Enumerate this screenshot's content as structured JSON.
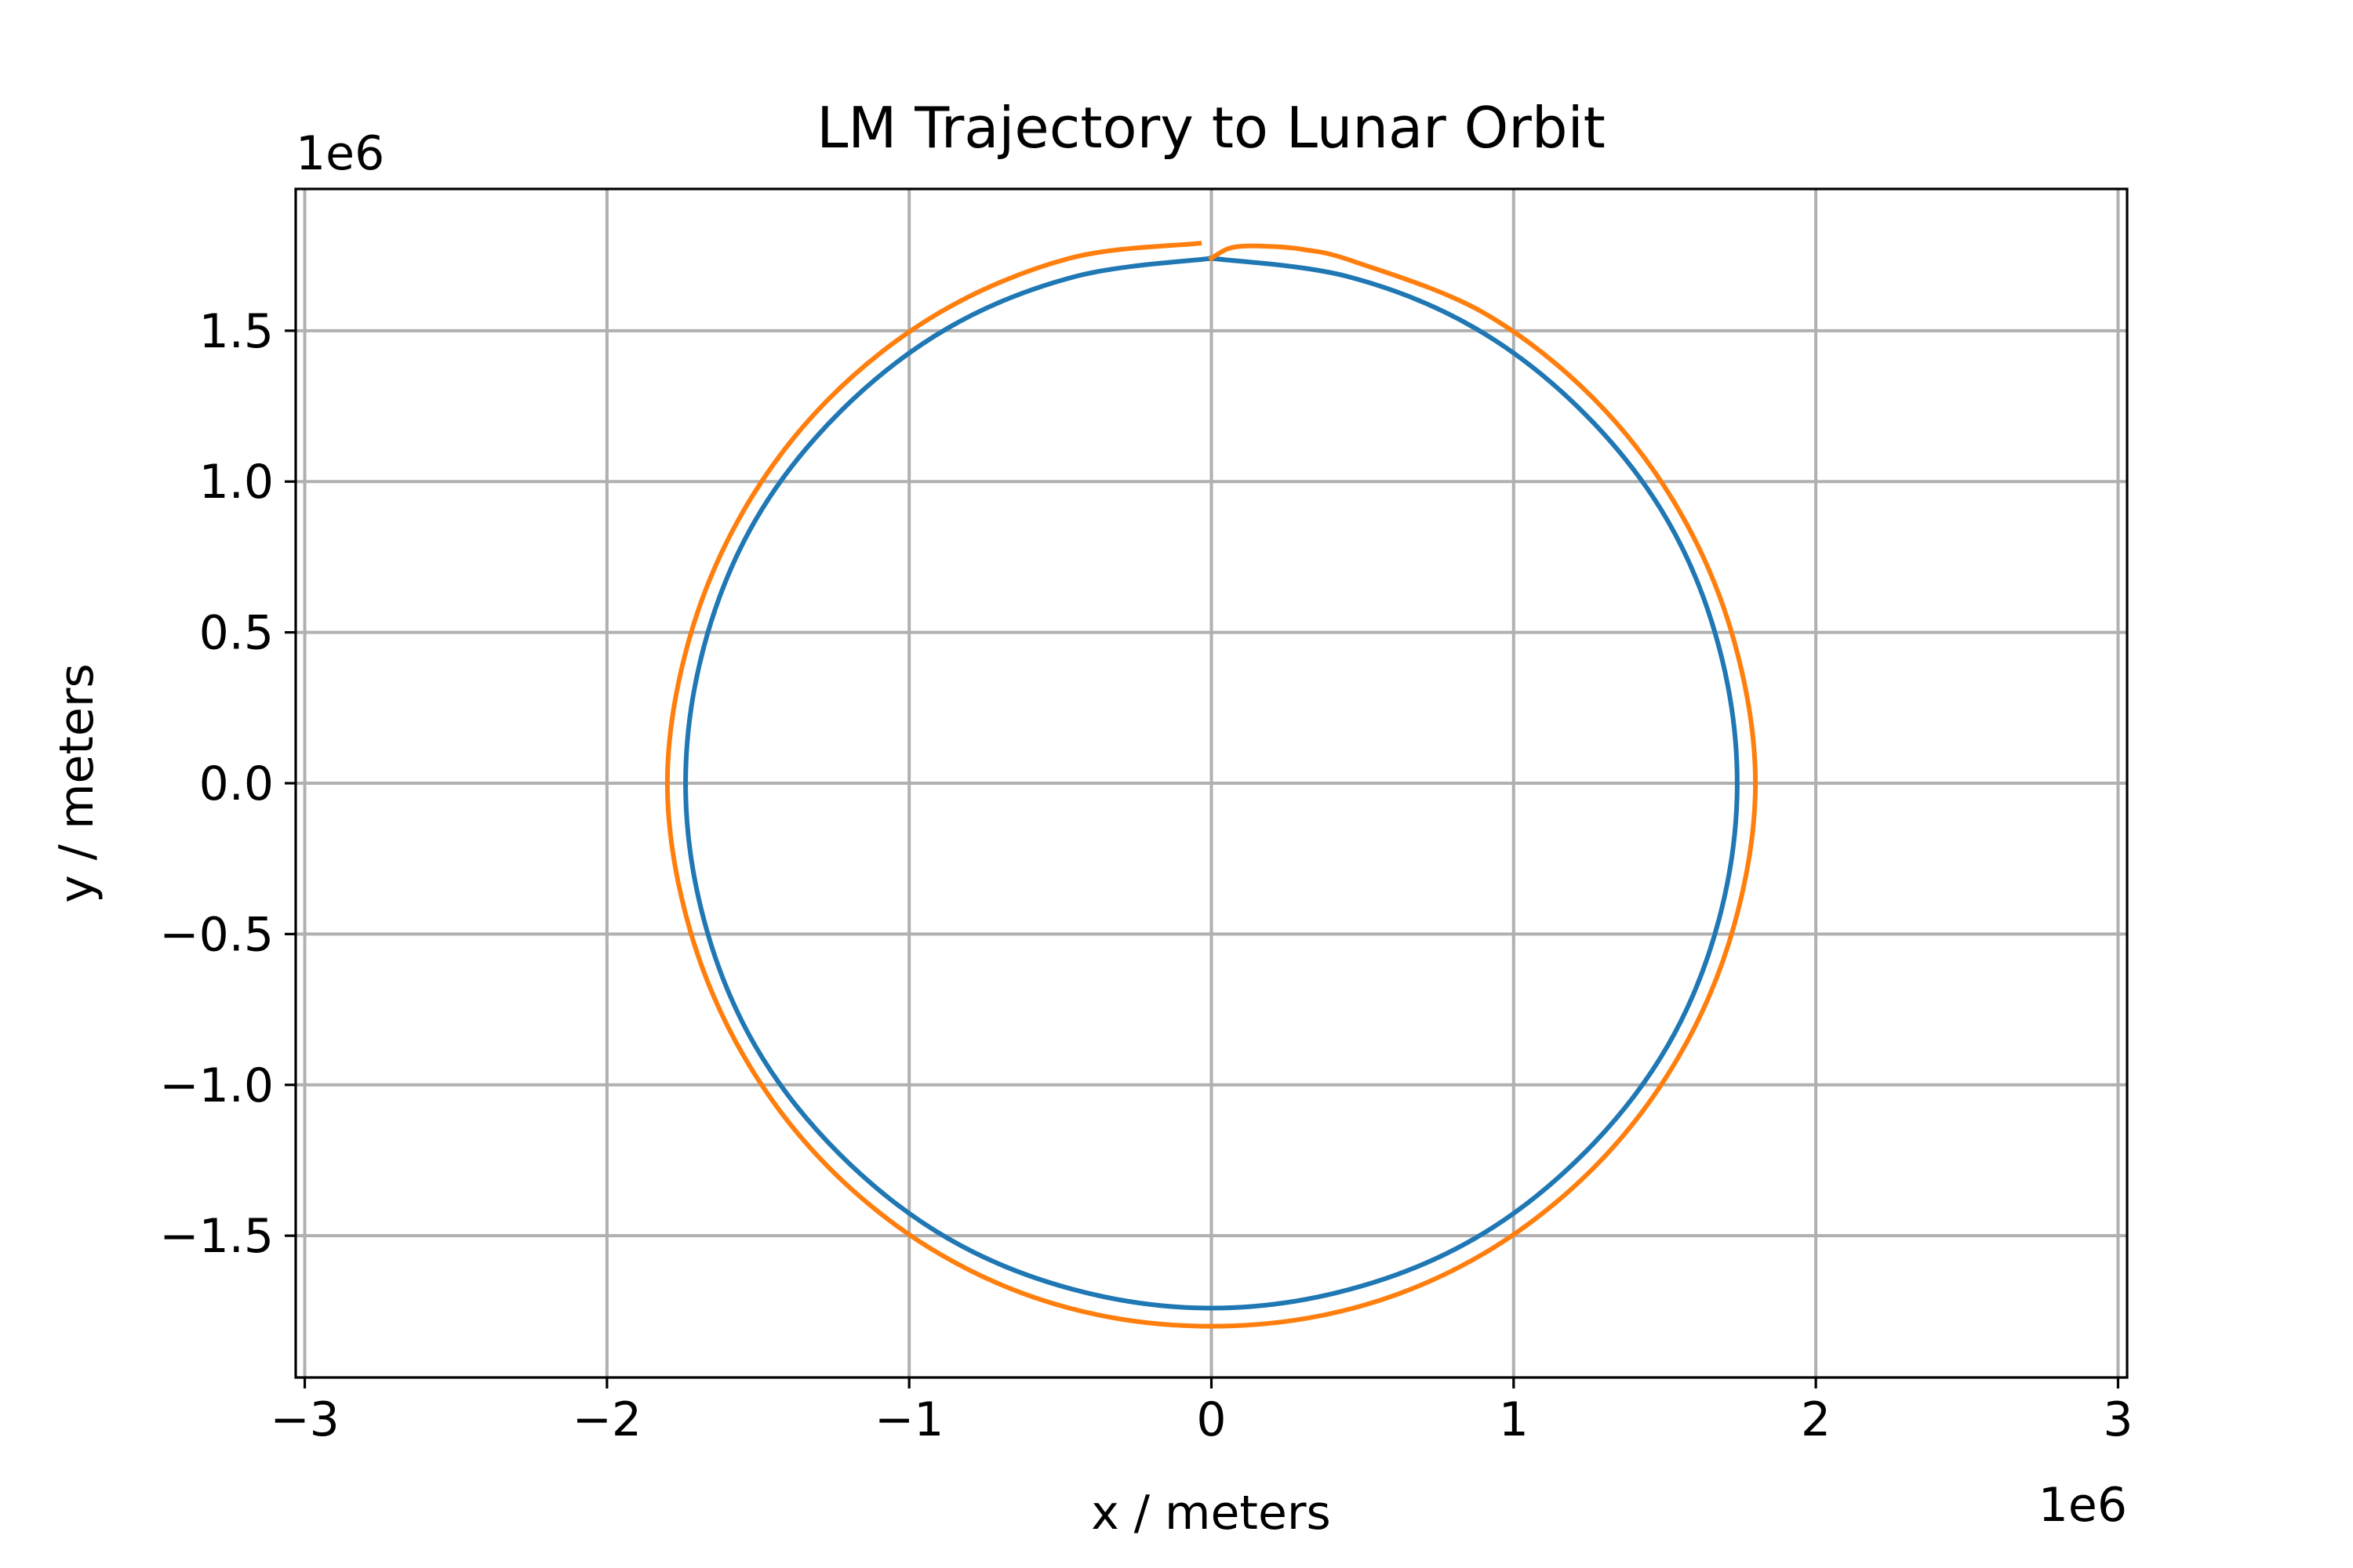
{
  "chart_data": {
    "type": "line",
    "title": "LM Trajectory to Lunar Orbit",
    "xlabel": "x / meters",
    "ylabel": "y / meters",
    "x_offset_label": "1e6",
    "y_offset_label": "1e6",
    "xlim": [
      -3.03,
      3.03
    ],
    "ylim": [
      -1.97,
      1.97
    ],
    "x_ticks": [
      -3,
      -2,
      -1,
      0,
      1,
      2,
      3
    ],
    "x_tick_labels": [
      "−3",
      "−2",
      "−1",
      "0",
      "1",
      "2",
      "3"
    ],
    "y_ticks": [
      -1.5,
      -1.0,
      -0.5,
      0.0,
      0.5,
      1.0,
      1.5
    ],
    "y_tick_labels": [
      "−1.5",
      "−1.0",
      "−0.5",
      "0.0",
      "0.5",
      "1.0",
      "1.5"
    ],
    "grid": true,
    "colors": {
      "series_1": "#1f77b4",
      "series_2": "#ff7f0e"
    },
    "series": [
      {
        "color": "#1f77b4",
        "x": [
          0,
          0.45,
          0.87,
          1.23,
          1.51,
          1.68,
          1.74,
          1.68,
          1.51,
          1.23,
          0.87,
          0.45,
          0,
          -0.45,
          -0.87,
          -1.23,
          -1.51,
          -1.68,
          -1.74,
          -1.68,
          -1.51,
          -1.23,
          -0.87,
          -0.45,
          0
        ],
        "y": [
          1.74,
          1.68,
          1.51,
          1.23,
          0.87,
          0.45,
          0,
          -0.45,
          -0.87,
          -1.23,
          -1.51,
          -1.68,
          -1.74,
          -1.68,
          -1.51,
          -1.23,
          -0.87,
          -0.45,
          0,
          0.45,
          0.87,
          1.23,
          1.51,
          1.68,
          1.74
        ]
      },
      {
        "color": "#ff7f0e",
        "x": [
          0.0,
          0.05,
          0.1,
          0.18,
          0.3,
          0.47,
          0.9,
          1.27,
          1.55,
          1.73,
          1.8,
          1.73,
          1.55,
          1.27,
          0.9,
          0.47,
          0,
          -0.47,
          -0.9,
          -1.27,
          -1.55,
          -1.73,
          -1.8,
          -1.73,
          -1.55,
          -1.27,
          -0.9,
          -0.47,
          -0.04
        ],
        "y": [
          1.74,
          1.77,
          1.78,
          1.78,
          1.77,
          1.73,
          1.56,
          1.27,
          0.9,
          0.47,
          0,
          -0.47,
          -0.9,
          -1.27,
          -1.56,
          -1.74,
          -1.8,
          -1.74,
          -1.56,
          -1.27,
          -0.9,
          -0.47,
          0,
          0.47,
          0.9,
          1.27,
          1.56,
          1.74,
          1.79
        ]
      }
    ]
  }
}
